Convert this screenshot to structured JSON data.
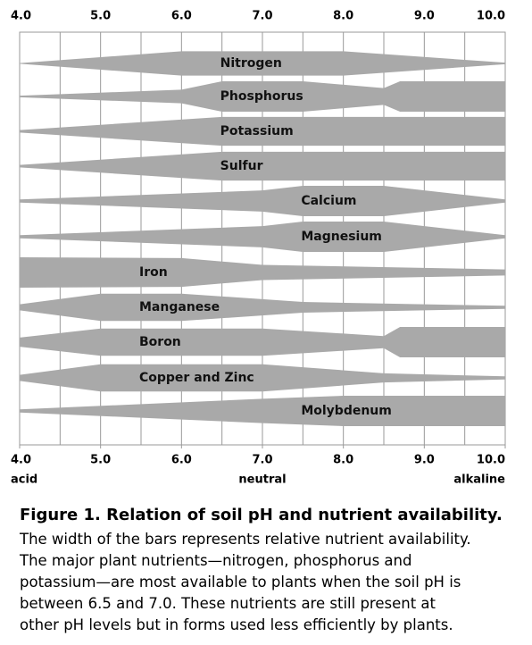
{
  "chart_data": {
    "type": "band",
    "xlim": [
      4,
      10
    ],
    "xticks": [
      {
        "value": 4,
        "label": "4.0"
      },
      {
        "value": 5,
        "label": "5.0"
      },
      {
        "value": 6,
        "label": "6.0"
      },
      {
        "value": 7,
        "label": "7.0"
      },
      {
        "value": 8,
        "label": "8.0"
      },
      {
        "value": 9,
        "label": "9.0"
      },
      {
        "value": 10,
        "label": "10.0"
      }
    ],
    "grid_x": [
      4,
      4.5,
      5,
      5.5,
      6,
      6.5,
      7,
      7.5,
      8,
      8.5,
      9,
      9.5,
      10
    ],
    "x_notes": [
      {
        "value": 4,
        "label": "acid"
      },
      {
        "value": 7,
        "label": "neutral"
      },
      {
        "value": 10,
        "label": "alkaline"
      }
    ],
    "color": "#a9a9a9",
    "series": [
      {
        "name": "Nitrogen",
        "x": [
          4,
          6,
          8,
          10
        ],
        "values": [
          0.02,
          0.8,
          0.8,
          0.05
        ]
      },
      {
        "name": "Phosphorus",
        "x": [
          4,
          6,
          6.5,
          7.5,
          8.5,
          8.7,
          10
        ],
        "values": [
          0.05,
          0.45,
          1,
          1,
          0.55,
          1,
          1
        ]
      },
      {
        "name": "Potassium",
        "x": [
          4,
          6.5,
          10
        ],
        "values": [
          0.08,
          0.95,
          0.95
        ]
      },
      {
        "name": "Sulfur",
        "x": [
          4,
          6.5,
          10
        ],
        "values": [
          0.08,
          0.95,
          0.95
        ]
      },
      {
        "name": "Calcium",
        "x": [
          4,
          7,
          7.5,
          8.5,
          10
        ],
        "values": [
          0.1,
          0.7,
          1,
          1,
          0.1
        ]
      },
      {
        "name": "Magnesium",
        "x": [
          4,
          7,
          7.5,
          8.5,
          10
        ],
        "values": [
          0.1,
          0.7,
          1,
          1,
          0.1
        ]
      },
      {
        "name": "Iron",
        "x": [
          4,
          6,
          7,
          10
        ],
        "values": [
          1,
          0.95,
          0.5,
          0.2
        ]
      },
      {
        "name": "Manganese",
        "x": [
          4,
          5,
          6,
          7.5,
          10
        ],
        "values": [
          0.2,
          0.9,
          0.9,
          0.35,
          0.1
        ]
      },
      {
        "name": "Boron",
        "x": [
          4,
          5,
          7,
          8.5,
          8.7,
          10
        ],
        "values": [
          0.3,
          0.9,
          0.9,
          0.4,
          1,
          1
        ]
      },
      {
        "name": "Copper and Zinc",
        "x": [
          4,
          5,
          7,
          8.5,
          10
        ],
        "values": [
          0.2,
          0.9,
          0.9,
          0.3,
          0.1
        ]
      },
      {
        "name": "Molybdenum",
        "x": [
          4,
          7,
          8,
          10
        ],
        "values": [
          0.1,
          0.8,
          1,
          1
        ]
      }
    ]
  },
  "caption": {
    "title": "Figure 1. Relation of soil pH and nutrient availability.",
    "lines": [
      "The width of the bars represents relative nutrient availability.",
      "The major plant nutrients—nitrogen, phosphorus and",
      "potassium—are most available to plants when the soil pH is",
      "between 6.5 and 7.0. These nutrients are still present at",
      "other pH levels but in forms used less efficiently by plants."
    ]
  }
}
